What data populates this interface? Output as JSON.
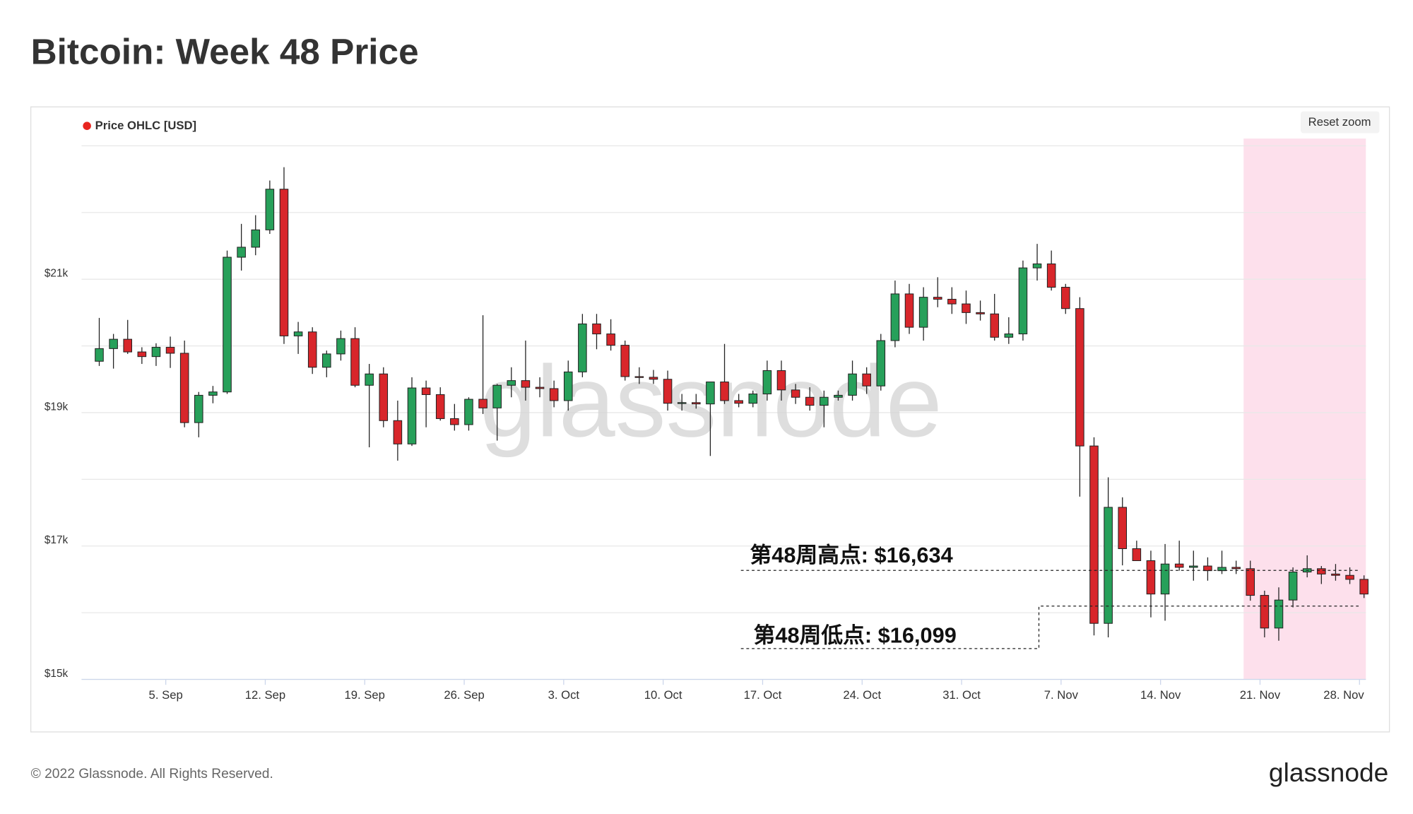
{
  "chart_data": {
    "type": "candlestick",
    "title": "Bitcoin: Week 48 Price",
    "watermark": "glassnode",
    "reset_button": "Reset zoom",
    "categories": [
      null,
      null,
      null,
      null,
      null,
      "5. Sep",
      null,
      null,
      null,
      null,
      null,
      null,
      "12. Sep",
      null,
      null,
      null,
      null,
      null,
      null,
      "19. Sep",
      null,
      null,
      null,
      null,
      null,
      null,
      "26. Sep",
      null,
      null,
      null,
      null,
      null,
      null,
      "3. Oct",
      null,
      null,
      null,
      null,
      null,
      null,
      "10. Oct",
      null,
      null,
      null,
      null,
      null,
      null,
      "17. Oct",
      null,
      null,
      null,
      null,
      null,
      null,
      "24. Oct",
      null,
      null,
      null,
      null,
      null,
      null,
      "31. Oct",
      null,
      null,
      null,
      null,
      null,
      null,
      "7. Nov",
      null,
      null,
      null,
      null,
      null,
      null,
      "14. Nov",
      null,
      null,
      null,
      null,
      null,
      null,
      "21. Nov",
      null,
      null,
      null,
      null,
      null,
      null,
      "28. Nov"
    ],
    "series": [
      {
        "name": "Price OHLC [USD]",
        "color": "#e8251f",
        "up_color": "#27a05a",
        "down_color": "#d8262b",
        "open": [
          19770,
          19960,
          20100,
          19910,
          19840,
          19980,
          19890,
          18850,
          19260,
          19310,
          21330,
          21480,
          21740,
          22350,
          20150,
          20210,
          19680,
          19880,
          20110,
          19410,
          19580,
          18880,
          18530,
          19370,
          19270,
          18910,
          18820,
          19200,
          19070,
          19410,
          19480,
          19380,
          19360,
          19180,
          19610,
          20330,
          20180,
          20010,
          19540,
          19530,
          19500,
          19140,
          19150,
          19130,
          19460,
          19180,
          19140,
          19280,
          19630,
          19340,
          19230,
          19110,
          19230,
          19260,
          19580,
          19400,
          20080,
          20780,
          20280,
          20730,
          20700,
          20630,
          20500,
          20480,
          20130,
          20180,
          21170,
          21230,
          20880,
          20560,
          18500,
          15840,
          17580,
          16960,
          16780,
          16280,
          16730,
          16680,
          16700,
          16630,
          16680,
          16660,
          16260,
          15770,
          16190,
          16610,
          16660,
          16580,
          16560,
          16500
        ],
        "high": [
          20420,
          20180,
          20390,
          19980,
          20040,
          20140,
          20080,
          19310,
          19400,
          21430,
          21830,
          21960,
          22480,
          22680,
          20360,
          20280,
          19930,
          20230,
          20280,
          19730,
          19680,
          19180,
          19530,
          19480,
          19380,
          19130,
          19230,
          20460,
          19430,
          19680,
          20080,
          19530,
          19480,
          19780,
          20480,
          20480,
          20400,
          20080,
          19680,
          19640,
          19630,
          19280,
          19280,
          19380,
          20030,
          19280,
          19330,
          19780,
          19780,
          19430,
          19380,
          19330,
          19330,
          19780,
          19680,
          20180,
          20980,
          20930,
          20880,
          21030,
          20880,
          20830,
          20680,
          20780,
          20430,
          21280,
          21530,
          21430,
          20930,
          20730,
          18630,
          18030,
          17730,
          17080,
          16930,
          17030,
          17080,
          16930,
          16830,
          16930,
          16780,
          16780,
          16330,
          16380,
          16680,
          16860,
          16700,
          16730,
          16680,
          16560
        ],
        "low": [
          19700,
          19660,
          19880,
          19730,
          19700,
          19670,
          18780,
          18630,
          19140,
          19280,
          21130,
          21360,
          21680,
          20030,
          19880,
          19580,
          19530,
          19780,
          19380,
          18480,
          18780,
          18280,
          18500,
          18780,
          18880,
          18730,
          18730,
          18980,
          18580,
          19230,
          19180,
          19230,
          19080,
          19030,
          19530,
          19950,
          19930,
          19480,
          19430,
          19430,
          19030,
          19030,
          19060,
          18350,
          19130,
          19080,
          19080,
          19180,
          19180,
          19130,
          19030,
          18780,
          19180,
          19180,
          19280,
          19330,
          19980,
          20180,
          20080,
          20580,
          20480,
          20330,
          20380,
          20080,
          20030,
          20080,
          20980,
          20830,
          20480,
          17740,
          15660,
          15630,
          16710,
          16780,
          15930,
          15880,
          16630,
          16480,
          16480,
          16580,
          16580,
          16180,
          15630,
          15580,
          16080,
          16530,
          16430,
          16480,
          16430,
          16220
        ],
        "close": [
          19960,
          20100,
          19910,
          19840,
          19980,
          19890,
          18850,
          19260,
          19310,
          21330,
          21480,
          21740,
          22350,
          20150,
          20210,
          19680,
          19880,
          20110,
          19410,
          19580,
          18880,
          18530,
          19370,
          19270,
          18910,
          18820,
          19200,
          19070,
          19410,
          19480,
          19380,
          19360,
          19180,
          19610,
          20330,
          20180,
          20010,
          19540,
          19530,
          19500,
          19140,
          19150,
          19130,
          19460,
          19180,
          19140,
          19280,
          19630,
          19340,
          19230,
          19110,
          19230,
          19260,
          19580,
          19400,
          20080,
          20780,
          20280,
          20730,
          20700,
          20630,
          20500,
          20480,
          20130,
          20180,
          21170,
          21230,
          20880,
          20560,
          18500,
          15840,
          17580,
          16960,
          16780,
          16280,
          16730,
          16680,
          16700,
          16630,
          16680,
          16660,
          16260,
          15770,
          16190,
          16610,
          16660,
          16580,
          16560,
          16500,
          16280
        ]
      }
    ],
    "ylim": [
      15000,
      23000
    ],
    "yticks": [
      {
        "value": 15000,
        "label": "$15k"
      },
      {
        "value": 17000,
        "label": "$17k"
      },
      {
        "value": 19000,
        "label": "$19k"
      },
      {
        "value": 21000,
        "label": "$21k"
      }
    ],
    "ygrid": [
      16000,
      18000,
      20000,
      22000,
      23000
    ],
    "grid": true,
    "annotations": [
      {
        "text": "第48周高点: $16,634",
        "value": 16634
      },
      {
        "text": "第48周低点: $16,099",
        "value": 16099
      }
    ]
  },
  "footer": {
    "copyright": "© 2022 Glassnode. All Rights Reserved.",
    "logo": "glassnode"
  }
}
